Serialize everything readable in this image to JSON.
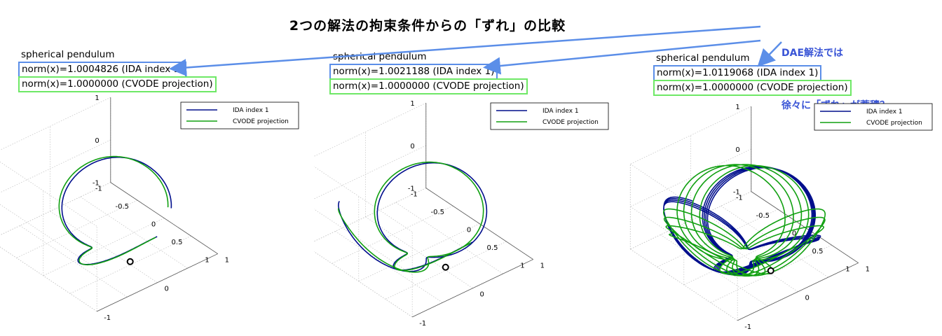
{
  "title": "2つの解法の拘束条件からの「ずれ」の比較",
  "callout": {
    "line1": "DAE解法では",
    "line2": "徐々に「ずれ」が蓄積？",
    "color": "#3a55d6"
  },
  "colors": {
    "ida": "#000e8c",
    "cvode": "#11a011",
    "blue_box": "#5b8ee8",
    "green_box": "#6ee866",
    "arrow": "#5b8ee8"
  },
  "chart_data": [
    {
      "type": "line",
      "title": "spherical pendulum",
      "ida_norm_label": "norm(x)=1.0004826 (IDA index 1)",
      "cvode_norm_label": "norm(x)=1.0000000 (CVODE projection)",
      "legend": [
        "IDA index 1",
        "CVODE projection"
      ],
      "legend_position": "top-right",
      "grid": true,
      "z_ticks": [
        "1",
        "0",
        "-1"
      ],
      "x_ticks": [
        "-1",
        "0",
        "1"
      ],
      "y_ticks": [
        "-1",
        "-0.5",
        "0",
        "0.5",
        "1"
      ],
      "revolutions": 0.75
    },
    {
      "type": "line",
      "title": "spherical pendulum",
      "ida_norm_label": "norm(x)=1.0021188 (IDA index 1)",
      "cvode_norm_label": "norm(x)=1.0000000 (CVODE projection)",
      "legend": [
        "IDA index 1",
        "CVODE projection"
      ],
      "legend_position": "top-right",
      "grid": true,
      "z_ticks": [
        "1",
        "0",
        "-1"
      ],
      "x_ticks": [
        "-1",
        "0",
        "1"
      ],
      "y_ticks": [
        "-1",
        "-0.5",
        "0",
        "0.5",
        "1"
      ],
      "revolutions": 1.3
    },
    {
      "type": "line",
      "title": "spherical pendulum",
      "ida_norm_label": "norm(x)=1.0119068 (IDA index 1)",
      "cvode_norm_label": "norm(x)=1.0000000 (CVODE projection)",
      "legend": [
        "IDA index 1",
        "CVODE projection"
      ],
      "legend_position": "top-right",
      "grid": true,
      "z_ticks": [
        "1",
        "0",
        "-1"
      ],
      "x_ticks": [
        "-1",
        "0",
        "1"
      ],
      "y_ticks": [
        "-1",
        "-0.5",
        "0",
        "0.5",
        "1"
      ],
      "revolutions": 7
    }
  ]
}
